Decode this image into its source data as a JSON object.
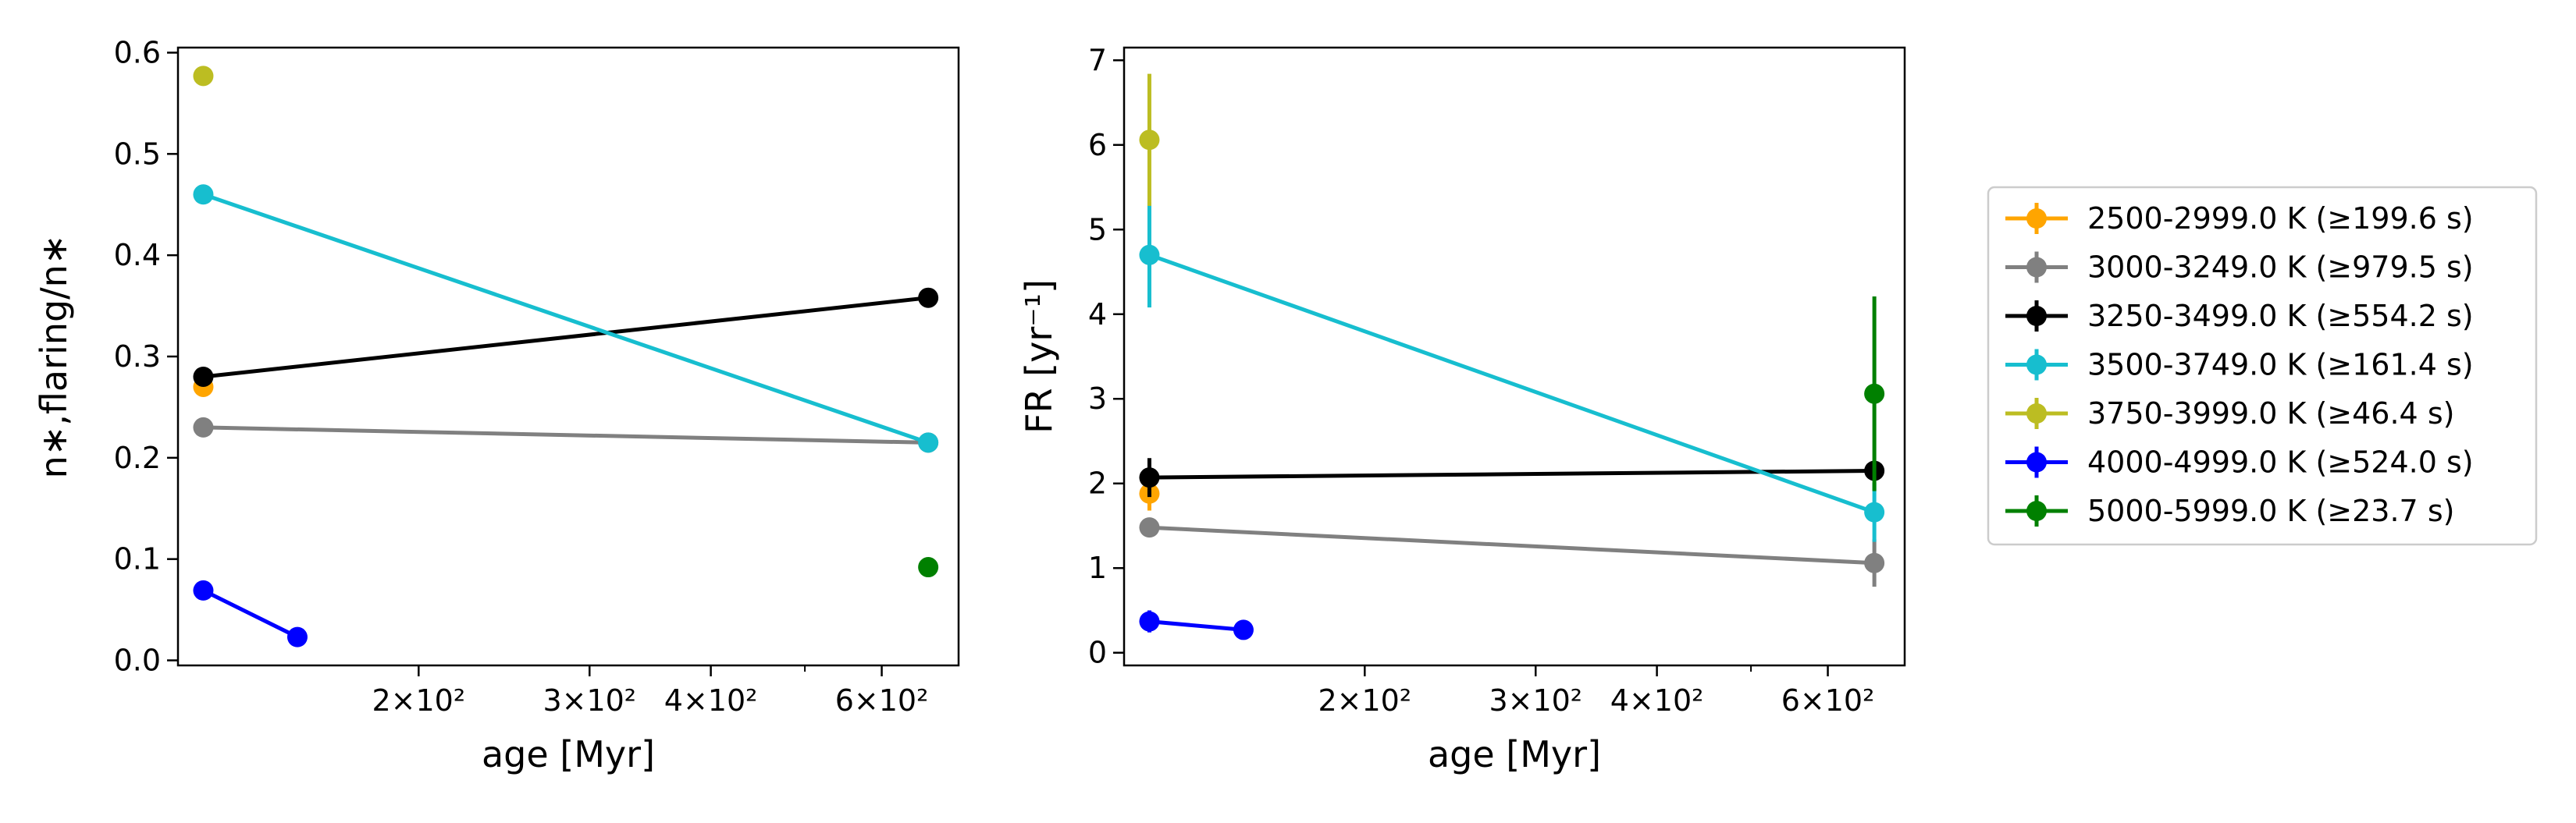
{
  "chart_data": [
    {
      "type": "line",
      "xlabel": "age [Myr]",
      "ylabel": "n∗,flaring/n∗",
      "xscale": "log",
      "xlim": [
        113,
        720
      ],
      "ylim": [
        -0.005,
        0.605
      ],
      "x_ticks": [
        {
          "value": 200,
          "label": "2×10²"
        },
        {
          "value": 300,
          "label": "3×10²"
        },
        {
          "value": 400,
          "label": "4×10²"
        },
        {
          "value": 600,
          "label": "6×10²"
        }
      ],
      "x_minor_ticks": [
        500
      ],
      "y_ticks": [
        0.0,
        0.1,
        0.2,
        0.3,
        0.4,
        0.5,
        0.6
      ],
      "y_tick_labels": [
        "0.0",
        "0.1",
        "0.2",
        "0.3",
        "0.4",
        "0.5",
        "0.6"
      ],
      "grid": false,
      "series": [
        {
          "name": "2500-2999.0 K (≥199.6 s)",
          "color": "#ffa500",
          "points": [
            [
              120,
              0.27
            ]
          ]
        },
        {
          "name": "3000-3249.0 K (≥979.5 s)",
          "color": "#808080",
          "points": [
            [
              120,
              0.23
            ],
            [
              670,
              0.215
            ]
          ]
        },
        {
          "name": "3250-3499.0 K (≥554.2 s)",
          "color": "#000000",
          "points": [
            [
              120,
              0.28
            ],
            [
              670,
              0.358
            ]
          ]
        },
        {
          "name": "3500-3749.0 K (≥161.4 s)",
          "color": "#17becf",
          "points": [
            [
              120,
              0.46
            ],
            [
              670,
              0.215
            ]
          ]
        },
        {
          "name": "3750-3999.0 K (≥46.4 s)",
          "color": "#bcbd22",
          "points": [
            [
              120,
              0.577
            ]
          ]
        },
        {
          "name": "4000-4999.0 K (≥524.0 s)",
          "color": "#0000ff",
          "points": [
            [
              120,
              0.069
            ],
            [
              150,
              0.023
            ]
          ]
        },
        {
          "name": "5000-5999.0 K (≥23.7 s)",
          "color": "#008000",
          "points": [
            [
              670,
              0.092
            ]
          ]
        }
      ]
    },
    {
      "type": "line",
      "xlabel": "age [Myr]",
      "ylabel": "FR [yr⁻¹]",
      "xscale": "log",
      "xlim": [
        113,
        720
      ],
      "ylim": [
        -0.15,
        7.15
      ],
      "x_ticks": [
        {
          "value": 200,
          "label": "2×10²"
        },
        {
          "value": 300,
          "label": "3×10²"
        },
        {
          "value": 400,
          "label": "4×10²"
        },
        {
          "value": 600,
          "label": "6×10²"
        }
      ],
      "x_minor_ticks": [
        500
      ],
      "y_ticks": [
        0,
        1,
        2,
        3,
        4,
        5,
        6,
        7
      ],
      "y_tick_labels": [
        "0",
        "1",
        "2",
        "3",
        "4",
        "5",
        "6",
        "7"
      ],
      "grid": false,
      "series": [
        {
          "name": "2500-2999.0 K (≥199.6 s)",
          "color": "#ffa500",
          "points": [
            [
              120,
              1.88
            ]
          ],
          "errors": [
            0.2
          ]
        },
        {
          "name": "3000-3249.0 K (≥979.5 s)",
          "color": "#808080",
          "points": [
            [
              120,
              1.48
            ],
            [
              670,
              1.06
            ]
          ],
          "errors": [
            0.06,
            0.28
          ]
        },
        {
          "name": "3250-3499.0 K (≥554.2 s)",
          "color": "#000000",
          "points": [
            [
              120,
              2.07
            ],
            [
              670,
              2.15
            ]
          ],
          "errors": [
            0.23,
            0.1
          ]
        },
        {
          "name": "3500-3749.0 K (≥161.4 s)",
          "color": "#17becf",
          "points": [
            [
              120,
              4.7
            ],
            [
              670,
              1.66
            ]
          ],
          "errors": [
            0.62,
            0.35
          ]
        },
        {
          "name": "3750-3999.0 K (≥46.4 s)",
          "color": "#bcbd22",
          "points": [
            [
              120,
              6.06
            ]
          ],
          "errors": [
            0.78
          ]
        },
        {
          "name": "4000-4999.0 K (≥524.0 s)",
          "color": "#0000ff",
          "points": [
            [
              120,
              0.37
            ],
            [
              150,
              0.27
            ]
          ],
          "errors": [
            0.13,
            0.06
          ]
        },
        {
          "name": "5000-5999.0 K (≥23.7 s)",
          "color": "#008000",
          "points": [
            [
              670,
              3.06
            ]
          ],
          "errors": [
            1.15
          ]
        }
      ]
    }
  ],
  "legend": {
    "placement": "right",
    "entries": [
      {
        "label": "2500-2999.0 K (≥199.6 s)",
        "color": "#ffa500"
      },
      {
        "label": "3000-3249.0 K (≥979.5 s)",
        "color": "#808080"
      },
      {
        "label": "3250-3499.0 K (≥554.2 s)",
        "color": "#000000"
      },
      {
        "label": "3500-3749.0 K (≥161.4 s)",
        "color": "#17becf"
      },
      {
        "label": "3750-3999.0 K (≥46.4 s)",
        "color": "#bcbd22"
      },
      {
        "label": "4000-4999.0 K (≥524.0 s)",
        "color": "#0000ff"
      },
      {
        "label": "5000-5999.0 K (≥23.7 s)",
        "color": "#008000"
      }
    ]
  }
}
